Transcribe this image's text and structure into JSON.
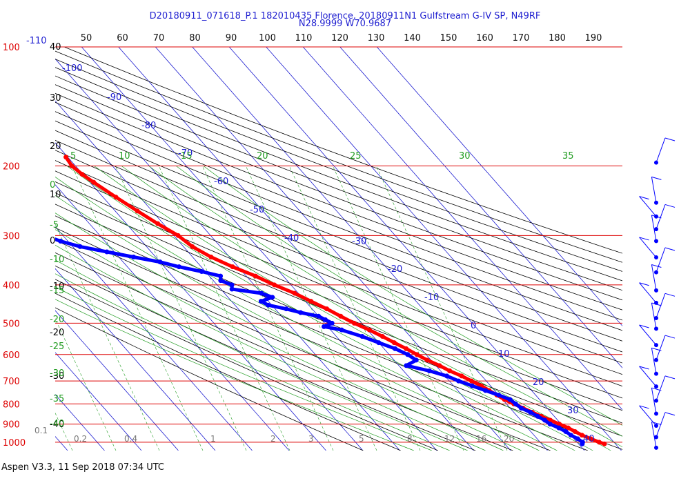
{
  "header": {
    "line1": "D20180911_071618_P.1 182010435 Florence, 20180911N1 Gulfstream G-IV SP, N49RF",
    "line2": "N28.9999 W70.9687"
  },
  "footer": "Aspen V3.3, 11 Sep 2018  07:34 UTC",
  "chart_data": {
    "type": "skew-t",
    "pressure_axis": {
      "label_values": [
        "100",
        "200",
        "300",
        "400",
        "500",
        "600",
        "700",
        "800",
        "900",
        "1000"
      ],
      "units": "hPa"
    },
    "top_axis_ticks": [
      "50",
      "60",
      "70",
      "80",
      "90",
      "100",
      "110",
      "120",
      "130",
      "140",
      "150",
      "160",
      "170",
      "180",
      "190"
    ],
    "height_axis_ticks": [
      "40",
      "30",
      "20",
      "10",
      "0",
      "-10",
      "-20",
      "-30",
      "-40"
    ],
    "isotherm_labels": [
      "-110",
      "-100",
      "-90",
      "-80",
      "-70",
      "-60",
      "-50",
      "-40",
      "-30",
      "-20",
      "-10",
      "0",
      "10",
      "20",
      "30",
      "40"
    ],
    "theta_e_labels": [
      "5",
      "10",
      "15",
      "20",
      "25",
      "30",
      "35"
    ],
    "moist_labels": [
      "0",
      "-5",
      "-10",
      "-15",
      "-20",
      "-25",
      "-30",
      "-35",
      "-40"
    ],
    "mixing_ratio_labels": [
      "0.1",
      "0.2",
      "0.4",
      "1",
      "2",
      "3",
      "5",
      "8",
      "12",
      "16",
      "20"
    ],
    "series": [
      {
        "role": "temperature",
        "color": "#ff0000",
        "points": [
          [
            190,
            -50.5
          ],
          [
            200,
            -51.0
          ],
          [
            210,
            -50.2
          ],
          [
            220,
            -49.0
          ],
          [
            240,
            -46.5
          ],
          [
            260,
            -44.0
          ],
          [
            280,
            -41.5
          ],
          [
            300,
            -38.8
          ],
          [
            320,
            -37.6
          ],
          [
            340,
            -35.0
          ],
          [
            360,
            -31.5
          ],
          [
            380,
            -27.5
          ],
          [
            400,
            -24.5
          ],
          [
            420,
            -21.0
          ],
          [
            440,
            -18.5
          ],
          [
            460,
            -16.0
          ],
          [
            480,
            -14.0
          ],
          [
            500,
            -12.0
          ],
          [
            520,
            -9.5
          ],
          [
            540,
            -7.5
          ],
          [
            560,
            -5.8
          ],
          [
            580,
            -4.0
          ],
          [
            600,
            -2.5
          ],
          [
            620,
            -1.0
          ],
          [
            640,
            1.0
          ],
          [
            660,
            2.5
          ],
          [
            680,
            4.5
          ],
          [
            700,
            6.0
          ],
          [
            720,
            7.5
          ],
          [
            740,
            8.5
          ],
          [
            760,
            9.5
          ],
          [
            780,
            10.5
          ],
          [
            800,
            12.0
          ],
          [
            820,
            13.5
          ],
          [
            840,
            15.0
          ],
          [
            860,
            16.5
          ],
          [
            880,
            18.0
          ],
          [
            900,
            19.5
          ],
          [
            920,
            21.0
          ],
          [
            940,
            22.0
          ],
          [
            960,
            23.0
          ],
          [
            980,
            24.5
          ],
          [
            1000,
            26.0
          ],
          [
            1010,
            27.0
          ]
        ]
      },
      {
        "role": "dewpoint",
        "color": "#0000ff",
        "points": [
          [
            240,
            -74.0
          ],
          [
            250,
            -74.5
          ],
          [
            260,
            -73.0
          ],
          [
            270,
            -72.0
          ],
          [
            280,
            -73.0
          ],
          [
            290,
            -74.0
          ],
          [
            300,
            -75.0
          ],
          [
            310,
            -72.0
          ],
          [
            320,
            -68.0
          ],
          [
            330,
            -62.0
          ],
          [
            340,
            -56.0
          ],
          [
            350,
            -50.0
          ],
          [
            360,
            -46.0
          ],
          [
            370,
            -41.0
          ],
          [
            380,
            -37.0
          ],
          [
            390,
            -38.0
          ],
          [
            400,
            -36.0
          ],
          [
            410,
            -37.0
          ],
          [
            420,
            -30.0
          ],
          [
            430,
            -28.0
          ],
          [
            440,
            -32.0
          ],
          [
            450,
            -31.0
          ],
          [
            460,
            -27.0
          ],
          [
            470,
            -24.0
          ],
          [
            480,
            -20.0
          ],
          [
            490,
            -19.0
          ],
          [
            500,
            -18.0
          ],
          [
            510,
            -21.0
          ],
          [
            520,
            -17.0
          ],
          [
            540,
            -13.0
          ],
          [
            560,
            -10.0
          ],
          [
            580,
            -7.0
          ],
          [
            600,
            -5.0
          ],
          [
            620,
            -4.0
          ],
          [
            640,
            -8.0
          ],
          [
            660,
            -3.0
          ],
          [
            680,
            0.5
          ],
          [
            700,
            2.5
          ],
          [
            720,
            5.0
          ],
          [
            740,
            7.5
          ],
          [
            760,
            10.0
          ],
          [
            780,
            12.0
          ],
          [
            800,
            12.5
          ],
          [
            820,
            13.0
          ],
          [
            840,
            14.5
          ],
          [
            860,
            15.5
          ],
          [
            880,
            16.5
          ],
          [
            900,
            17.0
          ],
          [
            920,
            18.5
          ],
          [
            940,
            19.5
          ],
          [
            960,
            20.0
          ],
          [
            980,
            21.0
          ],
          [
            1000,
            21.5
          ],
          [
            1010,
            21.0
          ]
        ]
      }
    ],
    "wind_barbs_pressures": [
      190,
      240,
      260,
      280,
      300,
      330,
      360,
      400,
      430,
      470,
      500,
      550,
      600,
      650,
      700,
      760,
      820,
      880,
      940,
      1000
    ]
  },
  "colors": {
    "isobar": "#dd0000",
    "isotherm": "#1b1bd0",
    "dry_adiabat": "#000000",
    "moist_adiabat": "#1f9b1f",
    "temperature": "#ff0000",
    "dewpoint": "#0000ff",
    "height_label": "#000000",
    "mixing_ratio_label": "#777777"
  }
}
